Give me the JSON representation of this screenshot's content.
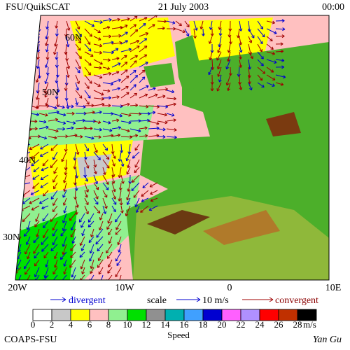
{
  "header": {
    "left": "FSU/QuikSCAT",
    "center": "21 July 2003",
    "right": "00:00"
  },
  "map": {
    "lat_labels": [
      "60N",
      "50N",
      "40N",
      "30N"
    ],
    "lon_labels": [
      "20W",
      "10W",
      "0",
      "10E"
    ]
  },
  "legend": {
    "divergent": "divergent",
    "scale": "scale",
    "scale_value": "10 m/s",
    "convergent": "convergent"
  },
  "colorbar": {
    "ticks": [
      0,
      2,
      4,
      6,
      8,
      10,
      12,
      14,
      16,
      18,
      20,
      22,
      24,
      26,
      28
    ],
    "unit": "m/s",
    "title": "Speed",
    "colors": [
      "#ffffff",
      "#c8c8c8",
      "#ffff00",
      "#ffc0c0",
      "#90f090",
      "#00e000",
      "#909090",
      "#00b0b0",
      "#40a0ff",
      "#0000d0",
      "#ff60ff",
      "#b090ff",
      "#ff0000",
      "#c03000",
      "#000000"
    ]
  },
  "footer": {
    "left": "COAPS-FSU",
    "right": "Yan Gu"
  }
}
